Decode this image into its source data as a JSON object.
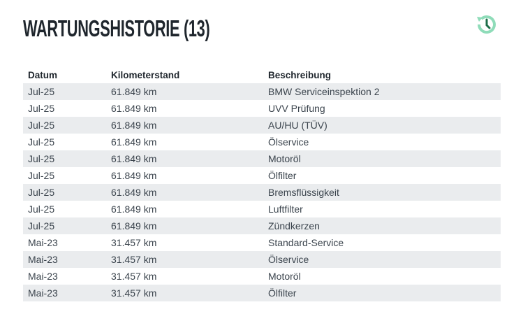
{
  "header": {
    "title": "WARTUNGSHISTORIE (13)",
    "icon": "history-icon",
    "accent": "#8fdcb9",
    "accent_dark": "#1e6e4a"
  },
  "table": {
    "columns": [
      "Datum",
      "Kilometerstand",
      "Beschreibung"
    ],
    "rows": [
      [
        "Jul-25",
        "61.849 km",
        "BMW Serviceinspektion 2"
      ],
      [
        "Jul-25",
        "61.849 km",
        "UVV Prüfung"
      ],
      [
        "Jul-25",
        "61.849 km",
        "AU/HU (TÜV)"
      ],
      [
        "Jul-25",
        "61.849 km",
        "Ölservice"
      ],
      [
        "Jul-25",
        "61.849 km",
        "Motoröl"
      ],
      [
        "Jul-25",
        "61.849 km",
        "Ölfilter"
      ],
      [
        "Jul-25",
        "61.849 km",
        "Bremsflüssigkeit"
      ],
      [
        "Jul-25",
        "61.849 km",
        "Luftfilter"
      ],
      [
        "Jul-25",
        "61.849 km",
        "Zündkerzen"
      ],
      [
        "Mai-23",
        "31.457 km",
        "Standard-Service"
      ],
      [
        "Mai-23",
        "31.457 km",
        "Ölservice"
      ],
      [
        "Mai-23",
        "31.457 km",
        "Motoröl"
      ],
      [
        "Mai-23",
        "31.457 km",
        "Ölfilter"
      ]
    ]
  }
}
